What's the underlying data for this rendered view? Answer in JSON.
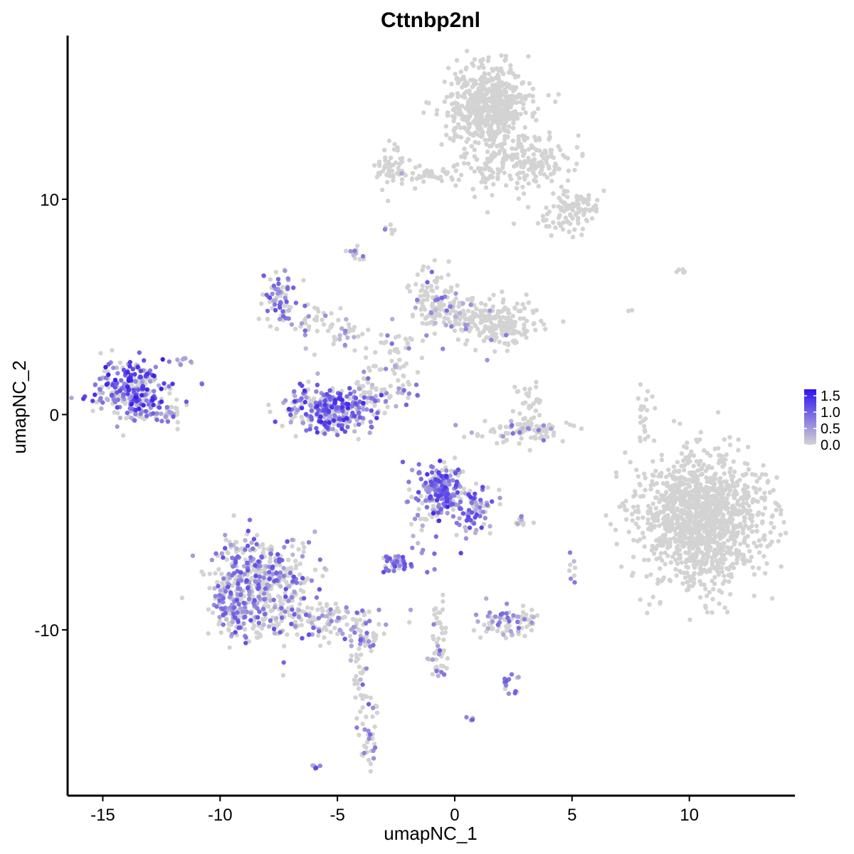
{
  "chart_data": {
    "type": "scatter",
    "title": "Cttnbp2nl",
    "xlabel": "umapNC_1",
    "ylabel": "umapNC_2",
    "xlim": [
      -16.5,
      14.5
    ],
    "ylim": [
      -17.7,
      17.6
    ],
    "xticks": [
      -15,
      -10,
      -5,
      0,
      5,
      10
    ],
    "xtick_labels": [
      "-15",
      "-10",
      "-5",
      "0",
      "5",
      "10"
    ],
    "yticks": [
      -10,
      0,
      10
    ],
    "ytick_labels": [
      "-10",
      "0",
      "10"
    ],
    "grid": false,
    "color_scale": {
      "low_color": "#d3d3d3",
      "high_color": "#2f12f0",
      "min": 0,
      "max": 1.7,
      "ticks": [
        0.0,
        0.5,
        1.0,
        1.5
      ],
      "tick_labels": [
        "0.0",
        "0.5",
        "1.0",
        "1.5"
      ],
      "legend_position": "right"
    },
    "clusters": [
      {
        "cx": -13.8,
        "cy": 1.2,
        "sx": 0.7,
        "sy": 0.7,
        "n": 300,
        "pos_frac": 0.65,
        "max_expr": 1.6
      },
      {
        "cx": -12.3,
        "cy": 0.0,
        "sx": 0.4,
        "sy": 0.3,
        "n": 40,
        "pos_frac": 0.5,
        "max_expr": 1.1
      },
      {
        "cx": -11.6,
        "cy": 2.5,
        "sx": 0.2,
        "sy": 0.2,
        "n": 8,
        "pos_frac": 0.8,
        "max_expr": 1.0
      },
      {
        "cx": -7.5,
        "cy": 5.3,
        "sx": 0.35,
        "sy": 0.7,
        "n": 70,
        "pos_frac": 0.55,
        "max_expr": 1.2
      },
      {
        "cx": -6.3,
        "cy": 4.5,
        "sx": 0.7,
        "sy": 0.4,
        "n": 30,
        "pos_frac": 0.2,
        "max_expr": 1.0
      },
      {
        "cx": -4.5,
        "cy": 3.8,
        "sx": 0.9,
        "sy": 0.4,
        "n": 40,
        "pos_frac": 0.2,
        "max_expr": 1.0
      },
      {
        "cx": -4.3,
        "cy": 7.3,
        "sx": 0.2,
        "sy": 0.3,
        "n": 12,
        "pos_frac": 0.5,
        "max_expr": 0.9
      },
      {
        "cx": -5.2,
        "cy": 0.2,
        "sx": 1.0,
        "sy": 0.55,
        "n": 300,
        "pos_frac": 0.65,
        "max_expr": 1.5
      },
      {
        "cx": -3.7,
        "cy": 1.2,
        "sx": 0.35,
        "sy": 0.5,
        "n": 40,
        "pos_frac": 0.4,
        "max_expr": 1.0
      },
      {
        "cx": -2.6,
        "cy": 2.3,
        "sx": 0.5,
        "sy": 0.7,
        "n": 50,
        "pos_frac": 0.25,
        "max_expr": 0.9
      },
      {
        "cx": -2.0,
        "cy": 1.0,
        "sx": 0.5,
        "sy": 0.3,
        "n": 15,
        "pos_frac": 0.5,
        "max_expr": 1.0
      },
      {
        "cx": -0.8,
        "cy": 5.3,
        "sx": 0.5,
        "sy": 0.7,
        "n": 110,
        "pos_frac": 0.2,
        "max_expr": 1.0
      },
      {
        "cx": 0.3,
        "cy": 4.6,
        "sx": 0.7,
        "sy": 0.3,
        "n": 80,
        "pos_frac": 0.1,
        "max_expr": 0.8
      },
      {
        "cx": 2.0,
        "cy": 4.2,
        "sx": 0.7,
        "sy": 0.55,
        "n": 180,
        "pos_frac": 0.08,
        "max_expr": 0.8
      },
      {
        "cx": -2.7,
        "cy": 11.4,
        "sx": 0.35,
        "sy": 0.5,
        "n": 60,
        "pos_frac": 0.03,
        "max_expr": 0.6
      },
      {
        "cx": -1.0,
        "cy": 11.2,
        "sx": 0.8,
        "sy": 0.25,
        "n": 40,
        "pos_frac": 0.0,
        "max_expr": 0.5
      },
      {
        "cx": 1.5,
        "cy": 14.3,
        "sx": 0.9,
        "sy": 0.9,
        "n": 600,
        "pos_frac": 0.0,
        "max_expr": 0.5
      },
      {
        "cx": 1.5,
        "cy": 11.6,
        "sx": 0.6,
        "sy": 0.8,
        "n": 80,
        "pos_frac": 0.0,
        "max_expr": 0.5
      },
      {
        "cx": 3.4,
        "cy": 11.8,
        "sx": 0.9,
        "sy": 0.6,
        "n": 140,
        "pos_frac": 0.0,
        "max_expr": 0.5
      },
      {
        "cx": 5.4,
        "cy": 9.6,
        "sx": 0.4,
        "sy": 0.4,
        "n": 70,
        "pos_frac": 0.0,
        "max_expr": 0.5
      },
      {
        "cx": 4.5,
        "cy": 9.1,
        "sx": 0.6,
        "sy": 0.6,
        "n": 40,
        "pos_frac": 0.0,
        "max_expr": 0.5
      },
      {
        "cx": -2.8,
        "cy": 8.5,
        "sx": 0.15,
        "sy": 0.15,
        "n": 6,
        "pos_frac": 0.4,
        "max_expr": 0.8
      },
      {
        "cx": 3.2,
        "cy": 0.4,
        "sx": 0.3,
        "sy": 0.6,
        "n": 35,
        "pos_frac": 0.12,
        "max_expr": 1.0
      },
      {
        "cx": 3.0,
        "cy": -0.8,
        "sx": 1.0,
        "sy": 0.25,
        "n": 90,
        "pos_frac": 0.15,
        "max_expr": 1.0
      },
      {
        "cx": 8.0,
        "cy": 0.0,
        "sx": 0.15,
        "sy": 0.7,
        "n": 20,
        "pos_frac": 0.0,
        "max_expr": 0.5
      },
      {
        "cx": 10.5,
        "cy": -4.8,
        "sx": 1.3,
        "sy": 1.5,
        "n": 1300,
        "pos_frac": 0.0,
        "max_expr": 0.5
      },
      {
        "cx": 9.6,
        "cy": 6.7,
        "sx": 0.2,
        "sy": 0.1,
        "n": 5,
        "pos_frac": 0.0,
        "max_expr": 0.5
      },
      {
        "cx": -0.6,
        "cy": -3.5,
        "sx": 0.5,
        "sy": 0.6,
        "n": 200,
        "pos_frac": 0.7,
        "max_expr": 1.5
      },
      {
        "cx": 0.8,
        "cy": -4.6,
        "sx": 0.4,
        "sy": 0.6,
        "n": 80,
        "pos_frac": 0.7,
        "max_expr": 1.3
      },
      {
        "cx": -1.4,
        "cy": -5.3,
        "sx": 0.3,
        "sy": 0.9,
        "n": 20,
        "pos_frac": 0.6,
        "max_expr": 1.1
      },
      {
        "cx": -2.4,
        "cy": -6.9,
        "sx": 0.3,
        "sy": 0.2,
        "n": 40,
        "pos_frac": 0.8,
        "max_expr": 1.2
      },
      {
        "cx": 2.8,
        "cy": -5.0,
        "sx": 0.3,
        "sy": 0.1,
        "n": 10,
        "pos_frac": 0.5,
        "max_expr": 0.9
      },
      {
        "cx": -8.3,
        "cy": -8.0,
        "sx": 1.0,
        "sy": 1.2,
        "n": 500,
        "pos_frac": 0.45,
        "max_expr": 1.2
      },
      {
        "cx": -9.6,
        "cy": -9.0,
        "sx": 0.4,
        "sy": 0.5,
        "n": 80,
        "pos_frac": 0.5,
        "max_expr": 1.2
      },
      {
        "cx": -5.5,
        "cy": -9.6,
        "sx": 1.4,
        "sy": 0.5,
        "n": 120,
        "pos_frac": 0.35,
        "max_expr": 1.1
      },
      {
        "cx": -3.8,
        "cy": -10.4,
        "sx": 0.3,
        "sy": 0.3,
        "n": 30,
        "pos_frac": 0.3,
        "max_expr": 1.0
      },
      {
        "cx": -4.0,
        "cy": -12.5,
        "sx": 0.2,
        "sy": 1.0,
        "n": 30,
        "pos_frac": 0.15,
        "max_expr": 1.0
      },
      {
        "cx": -3.6,
        "cy": -14.8,
        "sx": 0.2,
        "sy": 0.7,
        "n": 35,
        "pos_frac": 0.3,
        "max_expr": 1.1
      },
      {
        "cx": -6.0,
        "cy": -16.3,
        "sx": 0.1,
        "sy": 0.08,
        "n": 5,
        "pos_frac": 1.0,
        "max_expr": 1.3
      },
      {
        "cx": -0.7,
        "cy": -10.5,
        "sx": 0.2,
        "sy": 1.2,
        "n": 50,
        "pos_frac": 0.2,
        "max_expr": 1.1
      },
      {
        "cx": 2.3,
        "cy": -9.6,
        "sx": 0.7,
        "sy": 0.3,
        "n": 80,
        "pos_frac": 0.4,
        "max_expr": 1.0
      },
      {
        "cx": 2.3,
        "cy": -12.5,
        "sx": 0.3,
        "sy": 0.2,
        "n": 15,
        "pos_frac": 0.5,
        "max_expr": 1.1
      },
      {
        "cx": 0.6,
        "cy": -14.2,
        "sx": 0.1,
        "sy": 0.1,
        "n": 4,
        "pos_frac": 1.0,
        "max_expr": 1.2
      },
      {
        "cx": 5.0,
        "cy": -7.3,
        "sx": 0.1,
        "sy": 0.3,
        "n": 8,
        "pos_frac": 0.4,
        "max_expr": 0.9
      },
      {
        "cx": -10.8,
        "cy": 1.4,
        "sx": 0.05,
        "sy": 0.05,
        "n": 2,
        "pos_frac": 1.0,
        "max_expr": 1.0
      },
      {
        "cx": 7.5,
        "cy": 4.8,
        "sx": 0.2,
        "sy": 0.2,
        "n": 2,
        "pos_frac": 0.0,
        "max_expr": 0.5
      }
    ]
  }
}
